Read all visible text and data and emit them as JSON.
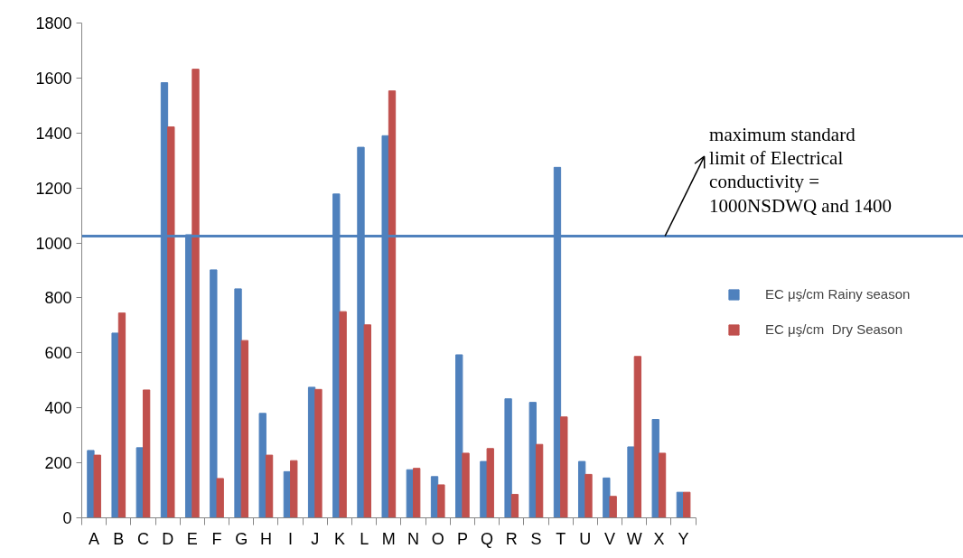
{
  "chart_data": {
    "type": "bar",
    "categories": [
      "A",
      "B",
      "C",
      "D",
      "E",
      "F",
      "G",
      "H",
      "I",
      "J",
      "K",
      "L",
      "M",
      "N",
      "O",
      "P",
      "Q",
      "R",
      "S",
      "T",
      "U",
      "V",
      "W",
      "X",
      "Y"
    ],
    "series": [
      {
        "name": "EC μş/cm Rainy season",
        "color": "#4f81bd",
        "values": [
          245,
          672,
          255,
          1583,
          1030,
          902,
          833,
          380,
          168,
          475,
          1178,
          1348,
          1390,
          175,
          150,
          593,
          205,
          433,
          420,
          1275,
          205,
          145,
          258,
          358,
          93
        ]
      },
      {
        "name": "EC μş/cm  Dry Season",
        "color": "#c0504d",
        "values": [
          228,
          745,
          465,
          1422,
          1632,
          143,
          645,
          228,
          208,
          467,
          750,
          702,
          1553,
          180,
          120,
          235,
          252,
          85,
          267,
          367,
          158,
          78,
          587,
          235,
          93
        ]
      }
    ],
    "ylim": [
      0,
      1800
    ],
    "yticks": [
      0,
      200,
      400,
      600,
      800,
      1000,
      1200,
      1400,
      1600,
      1800
    ],
    "ref_lines": [
      {
        "axis": "y",
        "value": 1025,
        "color": "#4f81bd"
      }
    ],
    "annotations": [
      {
        "text": "maximum   standard limit of  Electrical conductivity = 1000NSDWQ and 1400",
        "y": 1025
      }
    ],
    "grid": false,
    "legend": "right"
  }
}
